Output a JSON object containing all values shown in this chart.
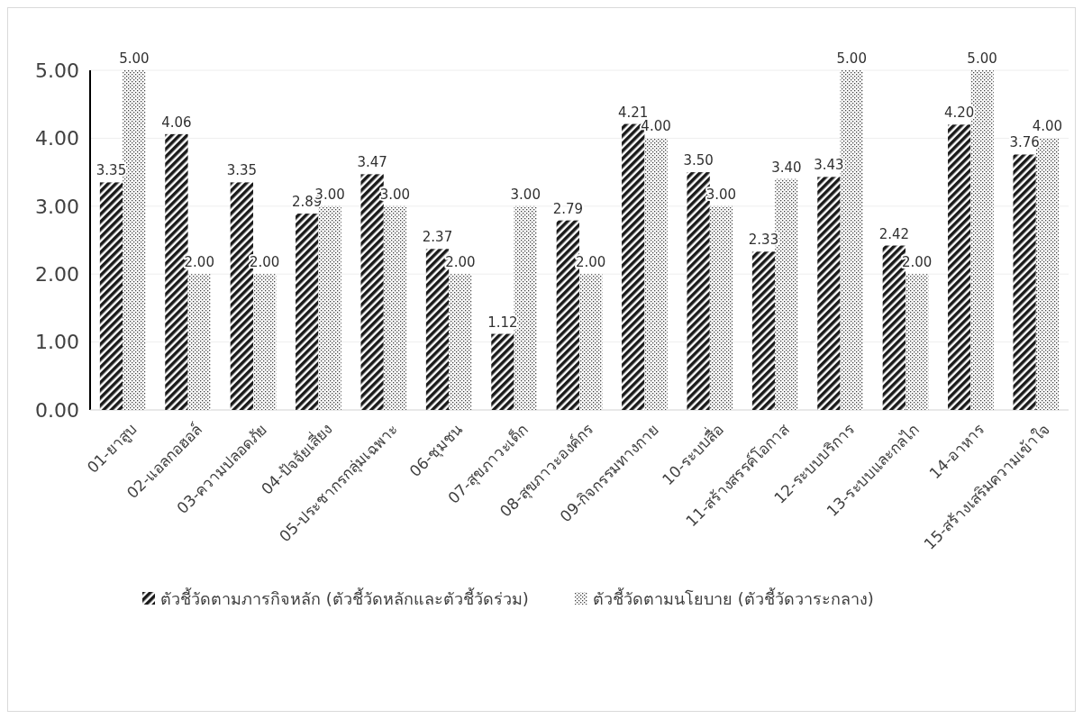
{
  "chart_data": {
    "type": "bar",
    "categories": [
      "01-ยาสูบ",
      "02-แอลกอฮอล์",
      "03-ความปลอดภัย",
      "04-ปัจจัยเสี่ยง",
      "05-ประชากรกลุ่มเฉพาะ",
      "06-ชุมชน",
      "07-สุขภาวะเด็ก",
      "08-สุขภาวะองค์กร",
      "09-กิจกรรมทางกาย",
      "10-ระบบสื่อ",
      "11-สร้างสรรค์โอกาส",
      "12-ระบบบริการ",
      "13-ระบบและกลไก",
      "14-อาหาร",
      "15-สร้างเสริมความเข้าใจ"
    ],
    "series": [
      {
        "name": "ตัวชี้วัดตามภารกิจหลัก (ตัวชี้วัดหลักและตัวชี้วัดร่วม)",
        "color": "#1a1a1a",
        "values": [
          3.35,
          4.06,
          3.35,
          2.89,
          3.47,
          2.37,
          1.12,
          2.79,
          4.21,
          3.5,
          2.33,
          3.43,
          2.42,
          4.2,
          3.76
        ],
        "value_labels": [
          "3.35",
          "4.06",
          "3.35",
          "2.89",
          "3.47",
          "2.37",
          "1.12",
          "2.79",
          "4.21",
          "3.50",
          "2.33",
          "3.43",
          "2.42",
          "4.20",
          "3.76"
        ]
      },
      {
        "name": "ตัวชี้วัดตามนโยบาย (ตัวชี้วัดวาระกลาง)",
        "color": "#404040",
        "values": [
          5,
          2,
          2,
          3,
          3,
          2,
          3,
          2,
          4,
          3,
          3.4,
          5,
          2,
          5,
          4
        ],
        "value_labels": [
          "5.00",
          "2.00",
          "2.00",
          "3.00",
          "3.00",
          "2.00",
          "3.00",
          "2.00",
          "4.00",
          "3.00",
          "3.40",
          "5.00",
          "2.00",
          "5.00",
          "4.00"
        ]
      }
    ],
    "ylim": [
      0,
      5
    ],
    "yticks": [
      {
        "value": 0,
        "label": "0.00"
      },
      {
        "value": 1,
        "label": "1.00"
      },
      {
        "value": 2,
        "label": "2.00"
      },
      {
        "value": 3,
        "label": "3.00"
      },
      {
        "value": 4,
        "label": "4.00"
      },
      {
        "value": 5,
        "label": "5.00"
      }
    ],
    "grid": "y",
    "legend": "bottom"
  }
}
